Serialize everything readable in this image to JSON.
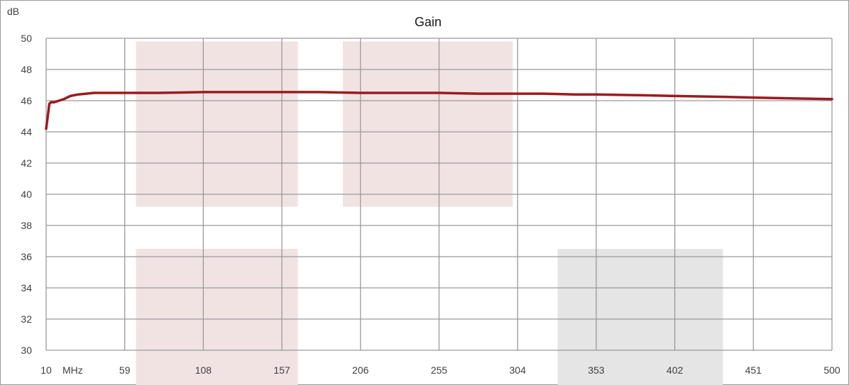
{
  "chart_data": {
    "type": "line",
    "title": "Gain",
    "ylabel": "dB",
    "xlabel": "MHz",
    "x_ticks": [
      "10",
      "59",
      "108",
      "157",
      "206",
      "255",
      "304",
      "353",
      "402",
      "451",
      "500"
    ],
    "y_ticks": [
      "30",
      "32",
      "34",
      "36",
      "38",
      "40",
      "42",
      "44",
      "46",
      "48",
      "50"
    ],
    "xlim": [
      10,
      500
    ],
    "ylim": [
      30,
      50
    ],
    "grid": true,
    "colors": {
      "line": "#9b1b1f",
      "band_pink": "#f2e3e3",
      "band_gray": "#e5e5e5",
      "grid": "#9a9a9a"
    },
    "shaded_regions": [
      {
        "x0": 66,
        "x1": 167,
        "y0": 39.2,
        "y1": 49.8,
        "color": "pink"
      },
      {
        "x0": 195,
        "x1": 301,
        "y0": 39.2,
        "y1": 49.8,
        "color": "pink"
      },
      {
        "x0": 66,
        "x1": 167,
        "y0": 30,
        "y1": 36.5,
        "color": "pink"
      },
      {
        "x0": 329,
        "x1": 432,
        "y0": 30,
        "y1": 36.5,
        "color": "gray"
      }
    ],
    "series": [
      {
        "x": [
          10,
          11,
          12,
          13,
          15,
          18,
          21,
          25,
          30,
          35,
          40,
          45,
          59,
          80,
          108,
          130,
          157,
          180,
          206,
          230,
          255,
          280,
          304,
          320,
          340,
          353,
          380,
          402,
          430,
          451,
          475,
          500
        ],
        "y": [
          44.2,
          45.0,
          45.8,
          45.9,
          45.9,
          46.0,
          46.1,
          46.3,
          46.4,
          46.45,
          46.5,
          46.5,
          46.5,
          46.5,
          46.55,
          46.55,
          46.55,
          46.55,
          46.5,
          46.5,
          46.5,
          46.45,
          46.45,
          46.45,
          46.4,
          46.4,
          46.35,
          46.3,
          46.25,
          46.2,
          46.15,
          46.1
        ]
      }
    ]
  }
}
